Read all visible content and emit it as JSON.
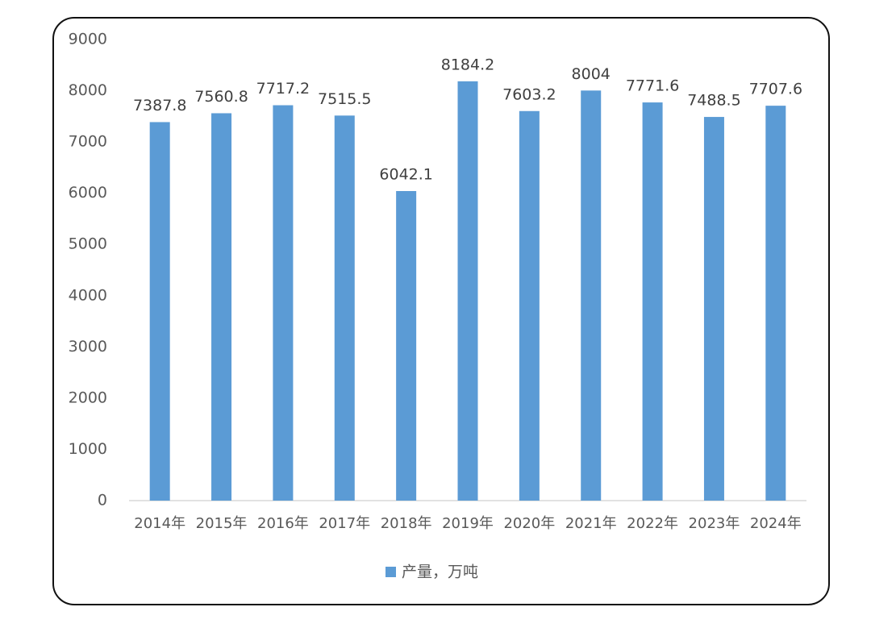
{
  "chart_data": {
    "type": "bar",
    "categories": [
      "2014年",
      "2015年",
      "2016年",
      "2017年",
      "2018年",
      "2019年",
      "2020年",
      "2021年",
      "2022年",
      "2023年",
      "2024年"
    ],
    "series": [
      {
        "name": "产量，万吨",
        "color": "#5b9bd5",
        "values": [
          7387.8,
          7560.8,
          7717.2,
          7515.5,
          6042.1,
          8184.2,
          7603.2,
          8004,
          7771.6,
          7488.5,
          7707.6
        ]
      }
    ],
    "ylim": [
      0,
      9000
    ],
    "yticks": [
      0,
      1000,
      2000,
      3000,
      4000,
      5000,
      6000,
      7000,
      8000,
      9000
    ],
    "grid": false,
    "legend": "bottom"
  }
}
